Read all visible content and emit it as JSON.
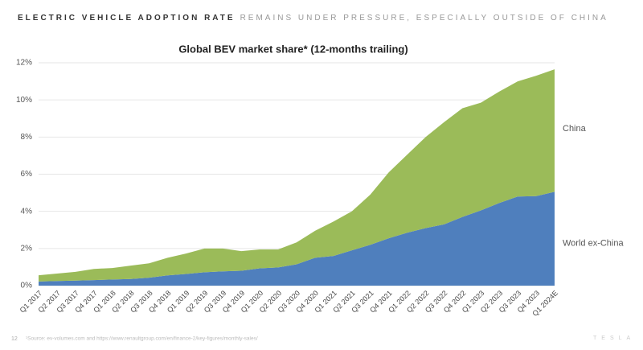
{
  "header": {
    "title_strong": "ELECTRIC VEHICLE ADOPTION RATE",
    "title_rest": "REMAINS UNDER PRESSURE, ESPECIALLY OUTSIDE OF CHINA"
  },
  "chart_data": {
    "type": "stacked_area",
    "title": "Global BEV market share* (12-months trailing)",
    "categories": [
      "Q1 2017",
      "Q2 2017",
      "Q3 2017",
      "Q4 2017",
      "Q1 2018",
      "Q2 2018",
      "Q3 2018",
      "Q4 2018",
      "Q1 2019",
      "Q2 2019",
      "Q3 2019",
      "Q4 2019",
      "Q1 2020",
      "Q2 2020",
      "Q3 2020",
      "Q4 2020",
      "Q1 2021",
      "Q2 2021",
      "Q3 2021",
      "Q4 2021",
      "Q1 2022",
      "Q2 2022",
      "Q3 2022",
      "Q4 2022",
      "Q1 2023",
      "Q2 2023",
      "Q3 2023",
      "Q4 2023",
      "Q1 2024E"
    ],
    "series": [
      {
        "name": "World ex-China",
        "color": "#4f7fbd",
        "values": [
          0.22,
          0.25,
          0.27,
          0.3,
          0.33,
          0.36,
          0.43,
          0.55,
          0.63,
          0.72,
          0.77,
          0.8,
          0.93,
          0.98,
          1.15,
          1.5,
          1.6,
          1.9,
          2.2,
          2.55,
          2.85,
          3.1,
          3.3,
          3.7,
          4.05,
          4.45,
          4.8,
          4.82,
          5.05
        ]
      },
      {
        "name": "China",
        "color": "#9bbb59",
        "values": [
          0.34,
          0.4,
          0.47,
          0.6,
          0.62,
          0.72,
          0.77,
          0.95,
          1.1,
          1.28,
          1.23,
          1.06,
          1.02,
          0.97,
          1.18,
          1.45,
          1.85,
          2.1,
          2.7,
          3.55,
          4.2,
          4.9,
          5.5,
          5.85,
          5.8,
          6.0,
          6.2,
          6.48,
          6.6
        ]
      }
    ],
    "ylim": [
      0,
      12
    ],
    "yticks": [
      {
        "value": 0,
        "label": "0%"
      },
      {
        "value": 2,
        "label": "2%"
      },
      {
        "value": 4,
        "label": "4%"
      },
      {
        "value": 6,
        "label": "6%"
      },
      {
        "value": 8,
        "label": "8%"
      },
      {
        "value": 10,
        "label": "10%"
      },
      {
        "value": 12,
        "label": "12%"
      }
    ],
    "grid": true
  },
  "footer": {
    "page": "12",
    "source": "¹Source: ev-volumes.com and https://www.renaultgroup.com/en/finance-2/key-figures/monthly-sales/",
    "logo": "TESLA"
  }
}
